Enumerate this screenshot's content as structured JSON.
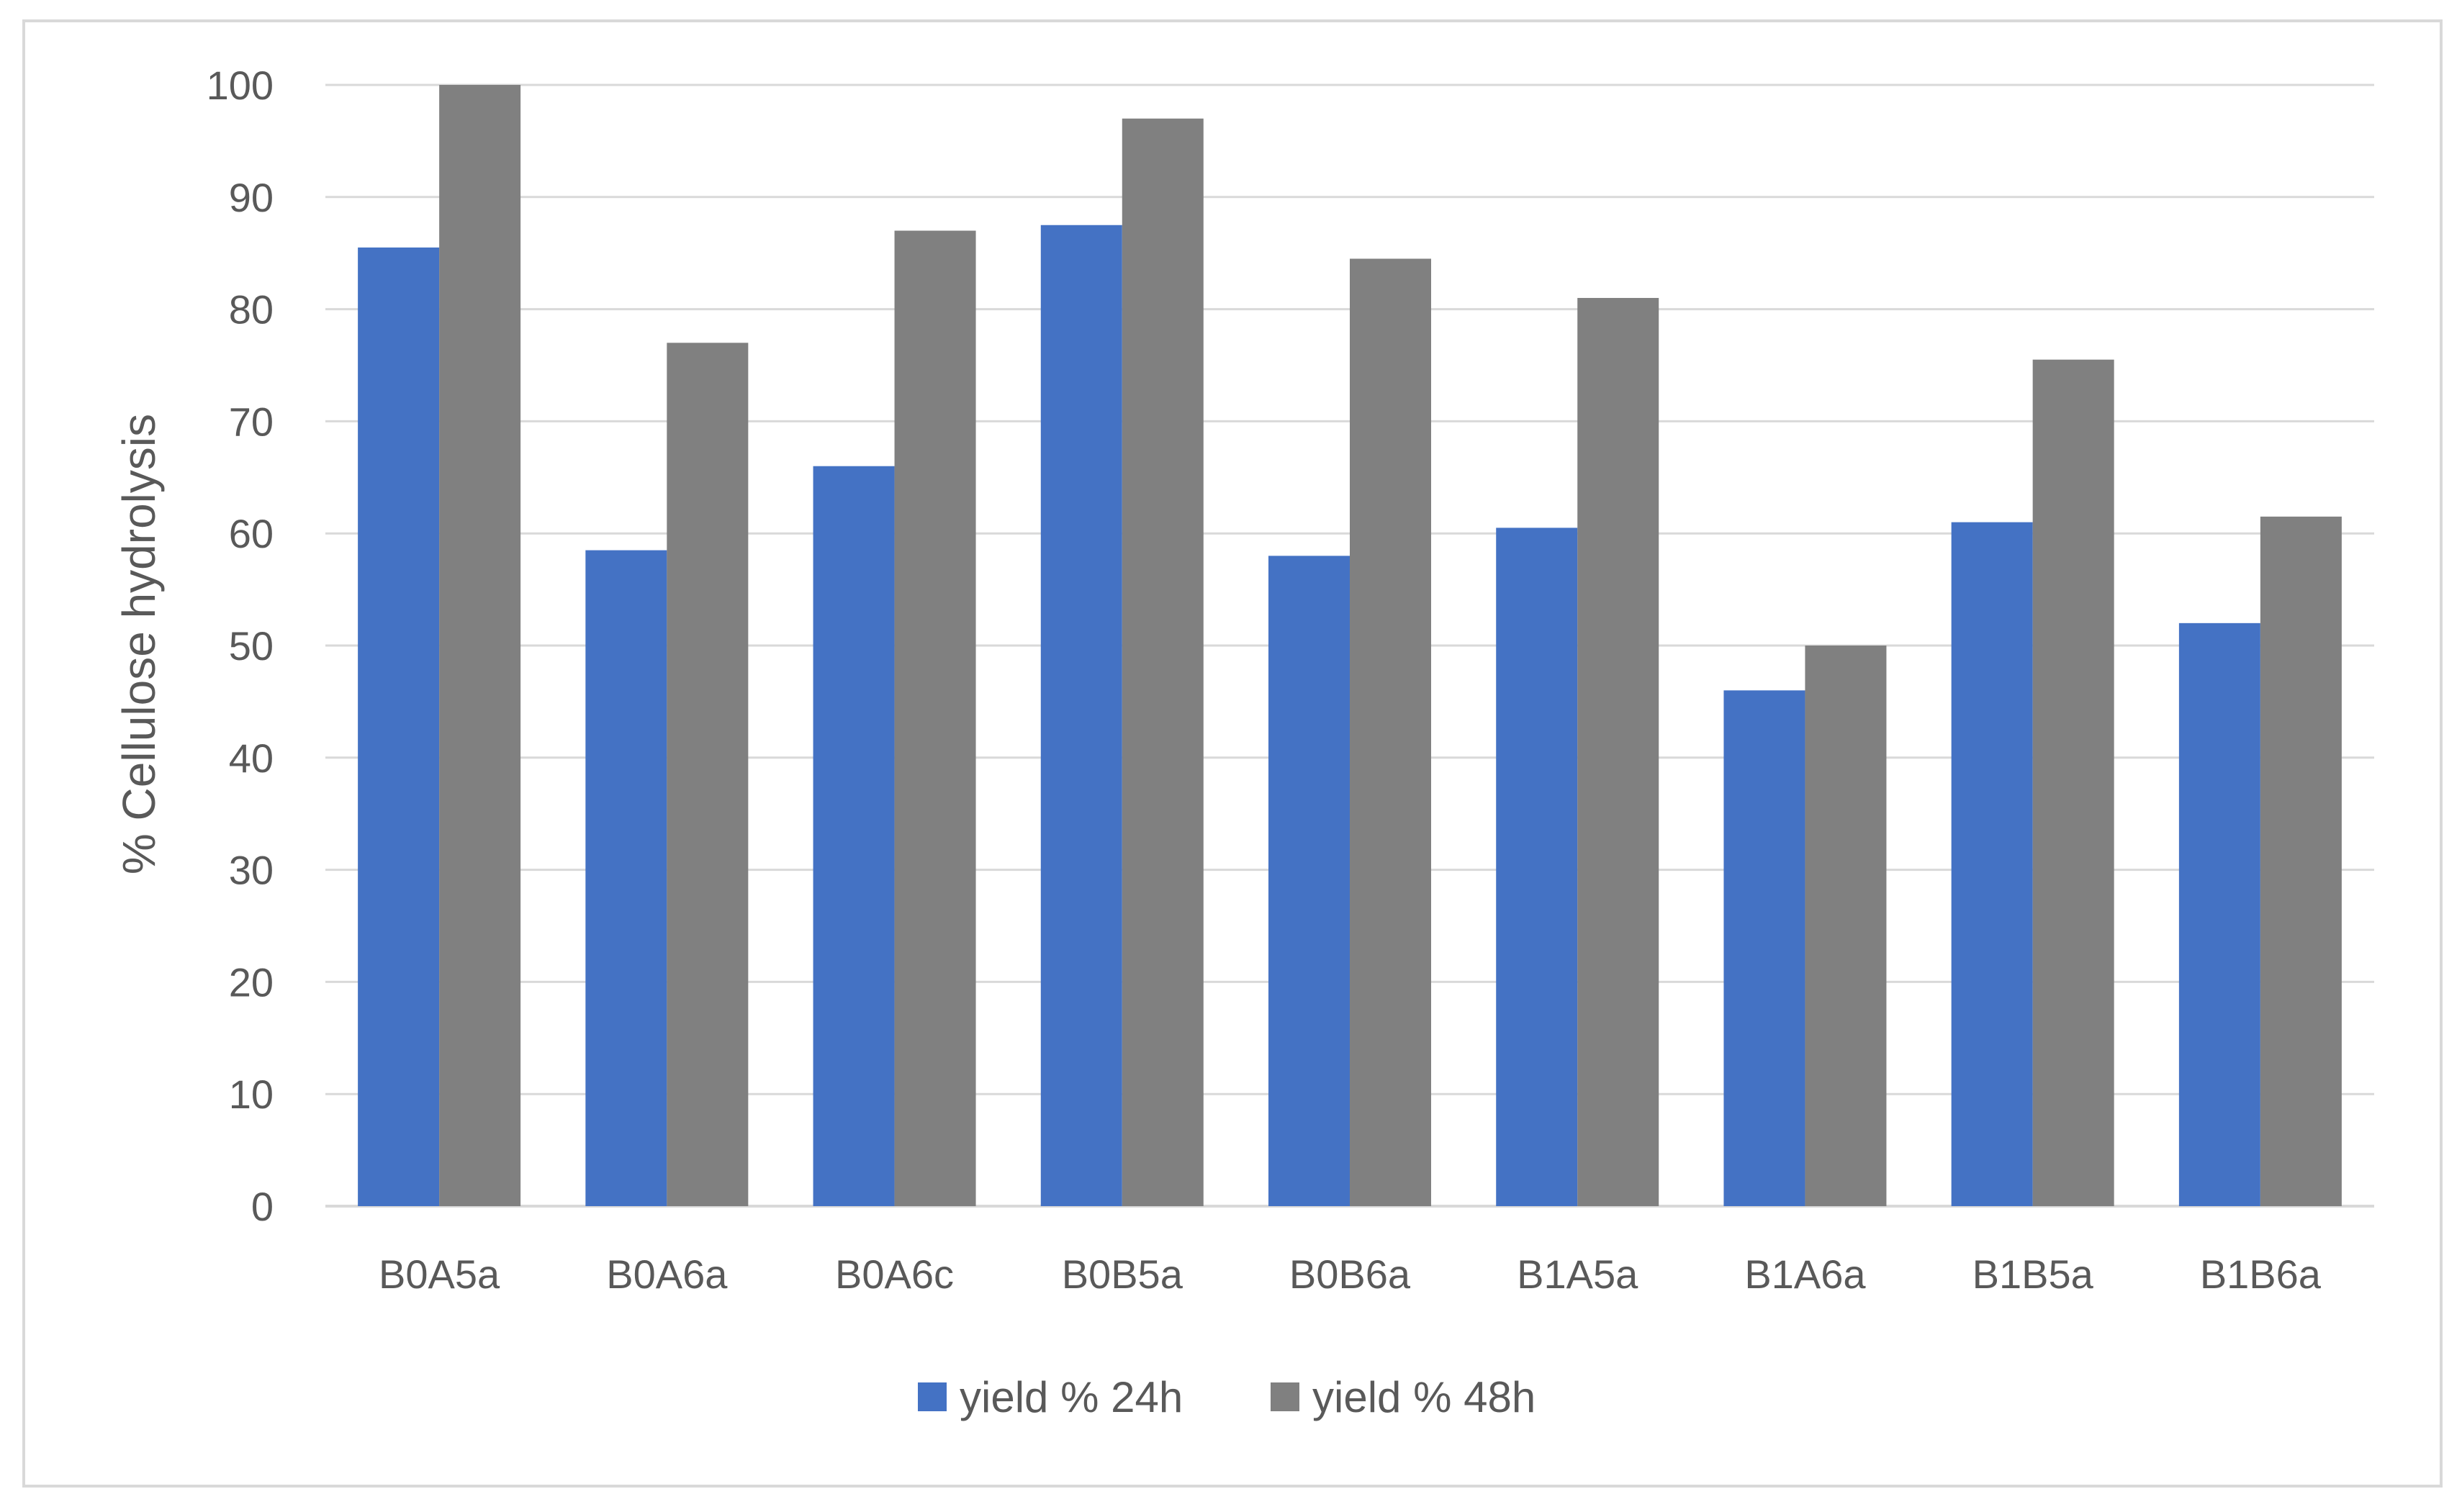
{
  "chart_data": {
    "type": "bar",
    "title": "",
    "xlabel": "",
    "ylabel": "% Cellulose hydrolysis",
    "ylim": [
      0,
      100
    ],
    "yticks": [
      0,
      10,
      20,
      30,
      40,
      50,
      60,
      70,
      80,
      90,
      100
    ],
    "grid": true,
    "legend_position": "bottom",
    "categories": [
      "B0A5a",
      "B0A6a",
      "B0A6c",
      "B0B5a",
      "B0B6a",
      "B1A5a",
      "B1A6a",
      "B1B5a",
      "B1B6a"
    ],
    "series": [
      {
        "name": "yield % 24h",
        "color": "#4472C4",
        "values": [
          85.5,
          58.5,
          66,
          87.5,
          58,
          60.5,
          46,
          61,
          52
        ]
      },
      {
        "name": "yield % 48h",
        "color": "#808080",
        "values": [
          100,
          77,
          87,
          97,
          84.5,
          81,
          50,
          75.5,
          61.5
        ]
      }
    ]
  }
}
